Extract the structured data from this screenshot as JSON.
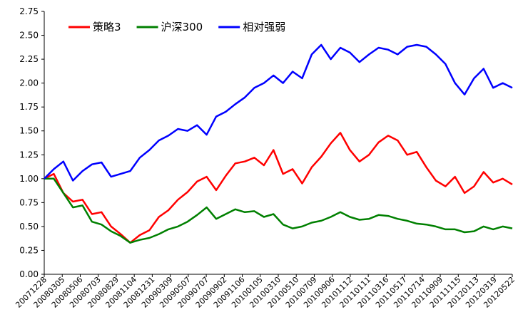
{
  "chart_data": {
    "type": "line",
    "title": "",
    "xlabel": "",
    "ylabel": "",
    "ylim": [
      0,
      2.75
    ],
    "y_ticks": [
      "0.00",
      "0.25",
      "0.50",
      "0.75",
      "1.00",
      "1.25",
      "1.50",
      "1.75",
      "2.00",
      "2.25",
      "2.50",
      "2.75"
    ],
    "x_tick_labels": [
      "20071228",
      "20080305",
      "20080506",
      "20080703",
      "20080829",
      "20081104",
      "20081231",
      "20090309",
      "20090507",
      "20090707",
      "20090902",
      "20091106",
      "20100105",
      "20100310",
      "20100510",
      "20100709",
      "20100906",
      "20101112",
      "20110111",
      "20110316",
      "20110517",
      "20110714",
      "20110909",
      "20111115",
      "20120113",
      "20120319",
      "20120522"
    ],
    "grid": false,
    "legend_position": "top-left",
    "series": [
      {
        "name": "策略3",
        "color": "#ff0000",
        "values": [
          1.0,
          1.05,
          0.85,
          0.76,
          0.78,
          0.63,
          0.65,
          0.5,
          0.42,
          0.33,
          0.41,
          0.46,
          0.6,
          0.67,
          0.78,
          0.86,
          0.97,
          1.02,
          0.88,
          1.03,
          1.16,
          1.18,
          1.22,
          1.14,
          1.3,
          1.05,
          1.1,
          0.95,
          1.12,
          1.23,
          1.37,
          1.48,
          1.3,
          1.18,
          1.25,
          1.38,
          1.45,
          1.4,
          1.25,
          1.28,
          1.12,
          0.98,
          0.92,
          1.02,
          0.85,
          0.92,
          1.07,
          0.96,
          1.0,
          0.94
        ]
      },
      {
        "name": "沪深300",
        "color": "#008000",
        "values": [
          1.0,
          1.0,
          0.85,
          0.7,
          0.72,
          0.55,
          0.52,
          0.45,
          0.4,
          0.33,
          0.36,
          0.38,
          0.42,
          0.47,
          0.5,
          0.55,
          0.62,
          0.7,
          0.58,
          0.63,
          0.68,
          0.65,
          0.66,
          0.6,
          0.63,
          0.52,
          0.48,
          0.5,
          0.54,
          0.56,
          0.6,
          0.65,
          0.6,
          0.57,
          0.58,
          0.62,
          0.61,
          0.58,
          0.56,
          0.53,
          0.52,
          0.5,
          0.47,
          0.47,
          0.44,
          0.45,
          0.5,
          0.47,
          0.5,
          0.48
        ]
      },
      {
        "name": "相对强弱",
        "color": "#0000ff",
        "values": [
          1.0,
          1.1,
          1.18,
          0.98,
          1.08,
          1.15,
          1.17,
          1.02,
          1.05,
          1.08,
          1.22,
          1.3,
          1.4,
          1.45,
          1.52,
          1.5,
          1.56,
          1.46,
          1.65,
          1.7,
          1.78,
          1.85,
          1.95,
          2.0,
          2.08,
          2.0,
          2.12,
          2.05,
          2.3,
          2.4,
          2.25,
          2.37,
          2.32,
          2.22,
          2.3,
          2.37,
          2.35,
          2.3,
          2.38,
          2.4,
          2.38,
          2.3,
          2.2,
          2.0,
          1.88,
          2.05,
          2.15,
          1.95,
          2.0,
          1.95
        ]
      }
    ]
  }
}
